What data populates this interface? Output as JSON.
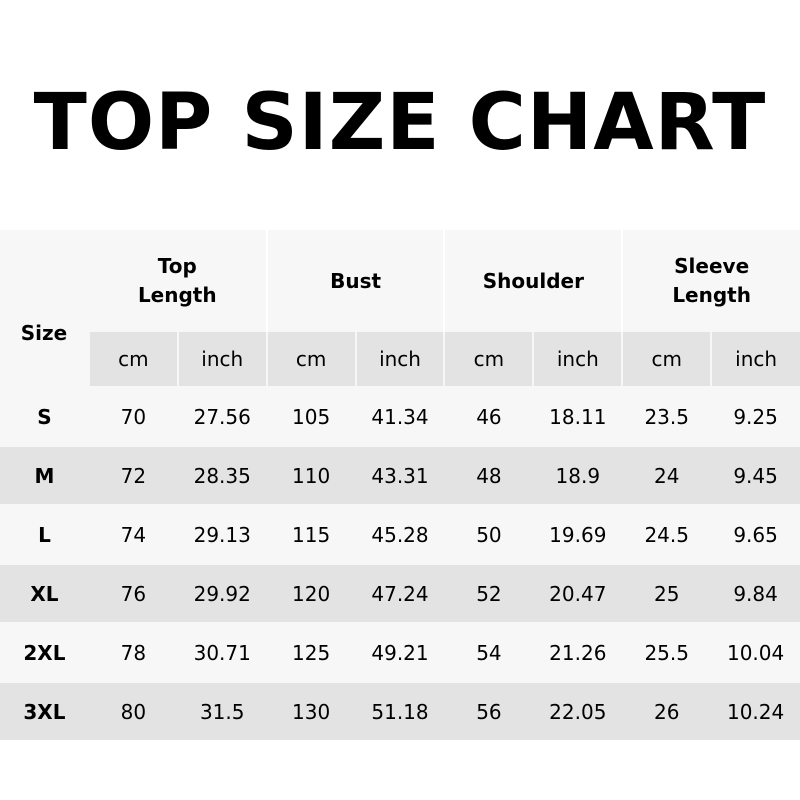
{
  "title": "TOP SIZE CHART",
  "headers": {
    "size": "Size",
    "groups": [
      "Top Length",
      "Bust",
      "Shoulder",
      "Sleeve Length"
    ],
    "units": [
      "cm",
      "inch",
      "cm",
      "inch",
      "cm",
      "inch",
      "cm",
      "inch"
    ]
  },
  "rows": [
    [
      "S",
      "70",
      "27.56",
      "105",
      "41.34",
      "46",
      "18.11",
      "23.5",
      "9.25"
    ],
    [
      "M",
      "72",
      "28.35",
      "110",
      "43.31",
      "48",
      "18.9",
      "24",
      "9.45"
    ],
    [
      "L",
      "74",
      "29.13",
      "115",
      "45.28",
      "50",
      "19.69",
      "24.5",
      "9.65"
    ],
    [
      "XL",
      "76",
      "29.92",
      "120",
      "47.24",
      "52",
      "20.47",
      "25",
      "9.84"
    ],
    [
      "2XL",
      "78",
      "30.71",
      "125",
      "49.21",
      "54",
      "21.26",
      "25.5",
      "10.04"
    ],
    [
      "3XL",
      "80",
      "31.5",
      "130",
      "51.18",
      "56",
      "22.05",
      "26",
      "10.24"
    ]
  ]
}
